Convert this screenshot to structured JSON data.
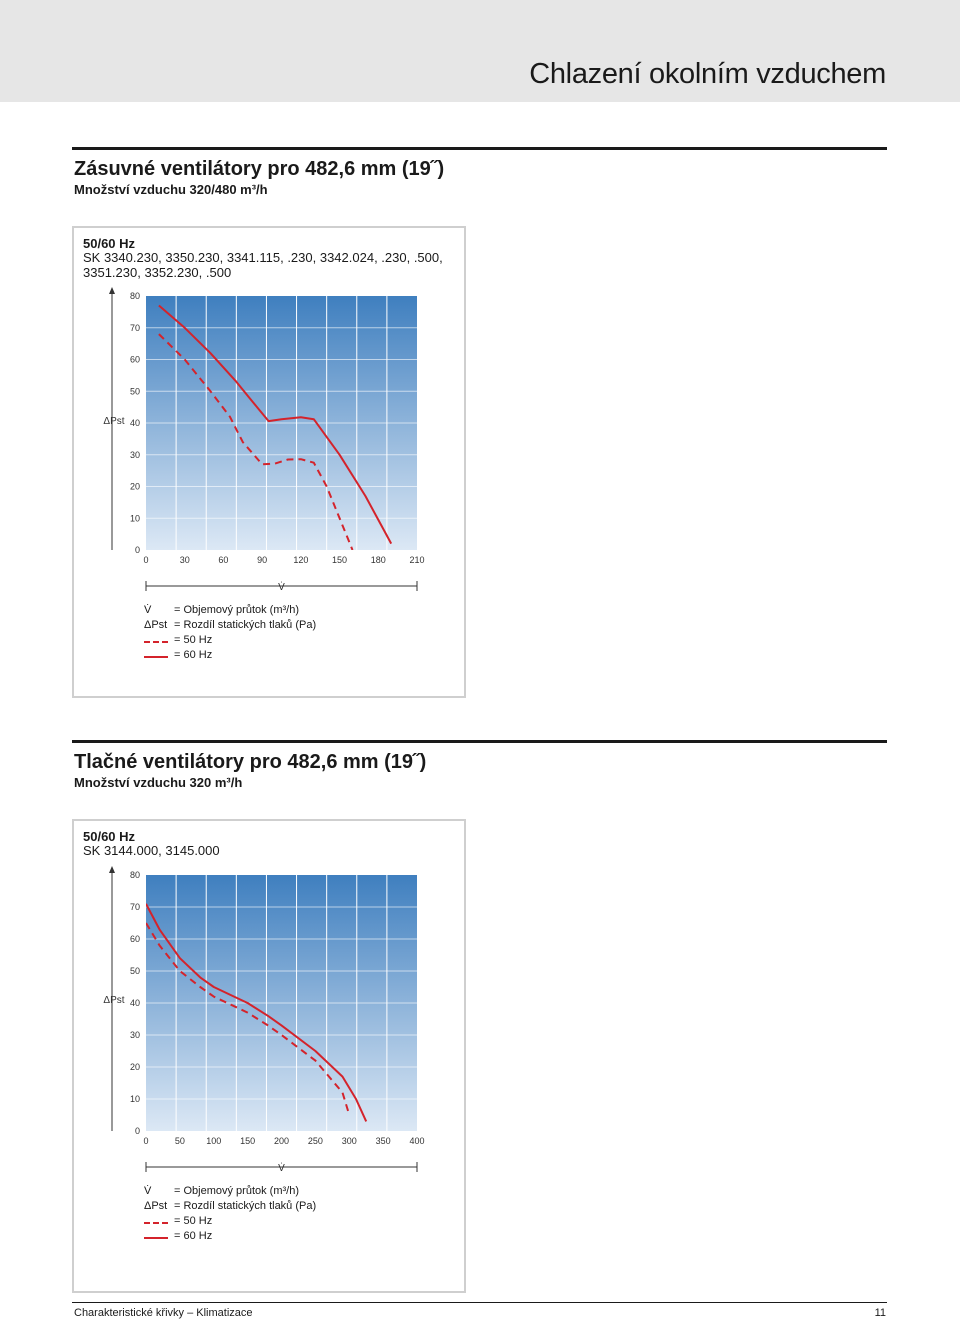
{
  "header": {
    "title": "Chlazení okolním vzduchem"
  },
  "sections": [
    {
      "title": "Zásuvné ventilátory pro 482,6 mm (19˝)",
      "subtitle": "Množství vzduchu 320/480 m³/h",
      "freq": "50/60 Hz",
      "models": "SK 3340.230, 3350.230, 3341.115, .230, 3342.024, .230, .500, 3351.230, 3352.230, .500"
    },
    {
      "title": "Tlačné ventilátory pro 482,6 mm (19˝)",
      "subtitle": "Množství vzduchu 320 m³/h",
      "freq": "50/60 Hz",
      "models": "SK 3144.000, 3145.000"
    }
  ],
  "legend": {
    "v_symbol": "V̇",
    "v_text": "= Objemový průtok (m³/h)",
    "p_symbol": "ΔPst",
    "p_text": "= Rozdíl statických tlaků (Pa)",
    "hz50": "= 50 Hz",
    "hz60": "= 60 Hz"
  },
  "footer": {
    "left": "Charakteristické křivky – Klimatizace",
    "page": "11"
  },
  "colors": {
    "curve": "#d4232b",
    "bg_top": "#3f7fbf",
    "bg_bottom": "#dce8f5",
    "grid": "#ffffff"
  },
  "chart_data": [
    {
      "type": "line",
      "xlabel": "V̇",
      "ylabel": "ΔPst",
      "xlim": [
        0,
        210
      ],
      "ylim": [
        0,
        80
      ],
      "xticks": [
        0,
        30,
        60,
        90,
        120,
        150,
        180,
        210
      ],
      "yticks": [
        0,
        10,
        20,
        30,
        40,
        50,
        60,
        70,
        80
      ],
      "grid": true,
      "series": [
        {
          "name": "60 Hz",
          "style": "solid",
          "x": [
            10,
            30,
            50,
            70,
            80,
            88,
            95,
            105,
            120,
            130,
            150,
            170,
            190
          ],
          "y": [
            77,
            70,
            62,
            53,
            48,
            44,
            40.6,
            41.2,
            41.8,
            41.2,
            30,
            17,
            2
          ]
        },
        {
          "name": "50 Hz",
          "style": "dashed",
          "x": [
            10,
            30,
            50,
            65,
            75,
            90,
            100,
            110,
            120,
            130,
            140,
            160
          ],
          "y": [
            68,
            60,
            50,
            42,
            34,
            27,
            27.2,
            28.5,
            28.6,
            27.5,
            20,
            0
          ]
        }
      ]
    },
    {
      "type": "line",
      "xlabel": "V̇",
      "ylabel": "ΔPst",
      "xlim": [
        0,
        400
      ],
      "ylim": [
        0,
        80
      ],
      "xticks": [
        0,
        50,
        100,
        150,
        200,
        250,
        300,
        350,
        400
      ],
      "yticks": [
        0,
        10,
        20,
        30,
        40,
        50,
        60,
        70,
        80
      ],
      "grid": true,
      "series": [
        {
          "name": "60 Hz",
          "style": "solid",
          "x": [
            0,
            20,
            50,
            80,
            100,
            130,
            150,
            180,
            200,
            250,
            290,
            310,
            325
          ],
          "y": [
            71,
            63,
            54,
            48,
            45,
            42,
            40,
            36,
            33,
            25,
            17,
            10,
            3
          ]
        },
        {
          "name": "50 Hz",
          "style": "dashed",
          "x": [
            0,
            20,
            50,
            80,
            100,
            130,
            150,
            180,
            200,
            250,
            290,
            300
          ],
          "y": [
            65,
            58,
            50,
            45,
            42,
            39,
            37,
            33,
            30,
            22,
            12,
            5
          ]
        }
      ]
    }
  ]
}
